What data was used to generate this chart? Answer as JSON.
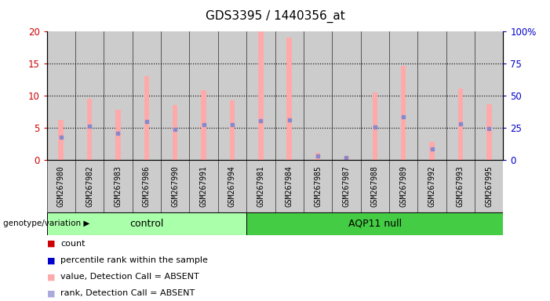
{
  "title": "GDS3395 / 1440356_at",
  "samples": [
    "GSM267980",
    "GSM267982",
    "GSM267983",
    "GSM267986",
    "GSM267990",
    "GSM267991",
    "GSM267994",
    "GSM267981",
    "GSM267984",
    "GSM267985",
    "GSM267987",
    "GSM267988",
    "GSM267989",
    "GSM267992",
    "GSM267993",
    "GSM267995"
  ],
  "n_control": 7,
  "pink_bar_values": [
    6.2,
    9.5,
    7.8,
    13.0,
    8.5,
    10.8,
    9.3,
    20.0,
    19.0,
    1.1,
    0.6,
    10.5,
    14.7,
    2.7,
    11.1,
    8.7
  ],
  "blue_dot_values": [
    3.5,
    5.2,
    4.1,
    5.9,
    4.7,
    5.4,
    5.5,
    6.1,
    6.2,
    0.5,
    0.3,
    5.1,
    6.7,
    1.6,
    5.6,
    4.8
  ],
  "left_ylim": [
    0,
    20
  ],
  "left_yticks": [
    0,
    5,
    10,
    15,
    20
  ],
  "right_yticks": [
    0,
    25,
    50,
    75,
    100
  ],
  "right_yticklabels": [
    "0",
    "25",
    "50",
    "75",
    "100%"
  ],
  "left_tick_color": "#cc0000",
  "right_tick_color": "#0000cc",
  "bar_bg_color": "#cccccc",
  "pink_color": "#ffaaaa",
  "blue_color": "#8888cc",
  "control_color": "#aaffaa",
  "aqp11_color": "#44cc44",
  "title_fontsize": 11,
  "genotype_label": "genotype/variation",
  "control_label": "control",
  "aqp11_label": "AQP11 null",
  "legend_colors": [
    "#cc0000",
    "#0000cc",
    "#ffaaaa",
    "#aaaadd"
  ],
  "legend_labels": [
    "count",
    "percentile rank within the sample",
    "value, Detection Call = ABSENT",
    "rank, Detection Call = ABSENT"
  ]
}
